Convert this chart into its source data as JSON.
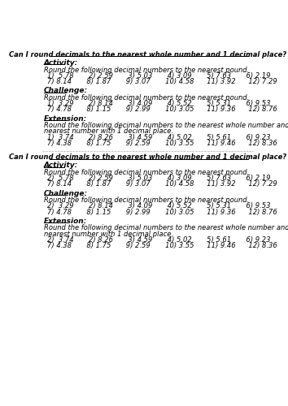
{
  "bg_color": "#ffffff",
  "title": "Can I round decimals to the nearest whole number and 1 decimal place?",
  "sections": [
    {
      "header": "Activity:",
      "lines": [
        {
          "text": "Round the following decimal numbers to the nearest pound.",
          "indent": false
        },
        {
          "text": "1)  5.78       2) 2.59       3) 5.03       4) 3.09       5) 7.63       6) 2.19",
          "indent": true
        },
        {
          "text": "7) 8.14       8) 1.87       9) 3.07       10) 4.58      11) 3.92      12) 7.29",
          "indent": true
        }
      ]
    },
    {
      "header": "Challenge:",
      "lines": [
        {
          "text": "Round the following decimal numbers to the nearest pound.",
          "indent": false
        },
        {
          "text": "1)  3.29       2) 8.14       3) 4.09       4) 5.52       5) 5.31       6) 9.53",
          "indent": true
        },
        {
          "text": "7) 4.78       8) 1.15       9) 2.99       10) 3.05      11) 9.36      12) 8.76",
          "indent": true
        }
      ]
    },
    {
      "header": "Extension:",
      "lines": [
        {
          "text": "Round the following decimal numbers to the nearest whole number and to the",
          "indent": false
        },
        {
          "text": "nearest number with 1 decimal place.",
          "indent": false
        },
        {
          "text": "1)  3.74       2) 8.26       3) 4.59       4) 5.02       5) 5.61       6) 9.23",
          "indent": true
        },
        {
          "text": "7) 4.38       8) 1.75       9) 2.59       10) 3.55      11) 9.46      12) 8.36",
          "indent": true
        }
      ]
    }
  ],
  "sections2": [
    {
      "header": "Activity:",
      "lines": [
        {
          "text": "Round the following decimal numbers to the nearest pound.",
          "indent": false
        },
        {
          "text": "2)  5.78       2) 2.59       3) 5.03       4) 3.09       5) 7.63       6) 2.19",
          "indent": true
        },
        {
          "text": "7) 8.14       8) 1.87       9) 3.07       10) 4.58      11) 3.92      12) 7.29",
          "indent": true
        }
      ]
    },
    {
      "header": "Challenge:",
      "lines": [
        {
          "text": "Round the following decimal numbers to the nearest pound.",
          "indent": false
        },
        {
          "text": "2)  3.29       2) 8.14       3) 4.09       4) 5.52       5) 5.31       6) 9.53",
          "indent": true
        },
        {
          "text": "7) 4.78       8) 1.15       9) 2.99       10) 3.05      11) 9.36      12) 8.76",
          "indent": true
        }
      ]
    },
    {
      "header": "Extension:",
      "lines": [
        {
          "text": "Round the following decimal numbers to the nearest whole number and to the",
          "indent": false
        },
        {
          "text": "nearest number with 1 decimal place.",
          "indent": false
        },
        {
          "text": "2)  3.74       2) 8.26       3) 4.59       4) 5.02       5) 5.61       6) 9.23",
          "indent": true
        },
        {
          "text": "7) 4.38       8) 1.75       9) 2.59       10) 3.55      11) 9.46      12) 8.36",
          "indent": true
        }
      ]
    }
  ]
}
